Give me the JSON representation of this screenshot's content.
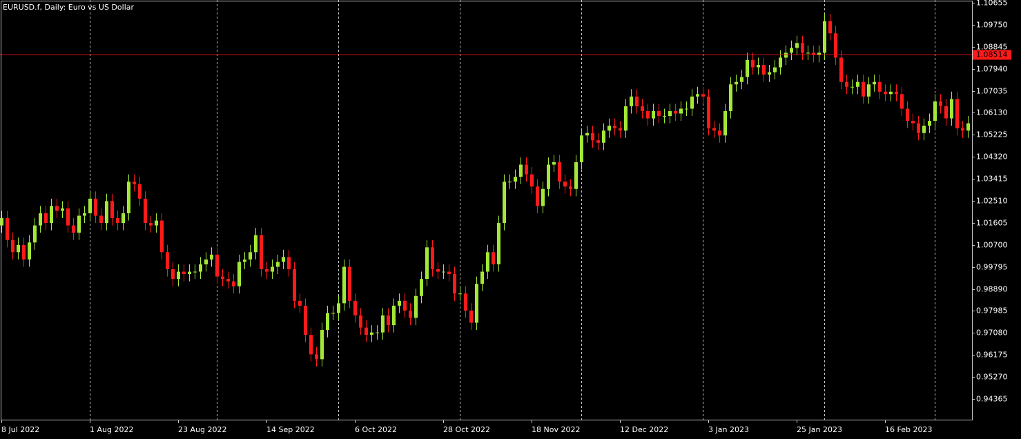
{
  "chart_data": {
    "type": "candlestick",
    "title": "EURUSD.f, Daily:  Euro vs US Dollar",
    "up_color": "#a4e837",
    "down_color": "#ff1a1a",
    "grid": true,
    "bid": 1.08514,
    "ylim": [
      0.93514,
      1.10769
    ],
    "yticks": [
      1.10655,
      {
        "value": 1.0975,
        "label": "1.09750"
      },
      1.08845,
      {
        "value": 1.0794,
        "label": "1.07940"
      },
      1.07035,
      {
        "value": 1.0613,
        "label": "1.06130"
      },
      1.05225,
      {
        "value": 1.0432,
        "label": "1.04320"
      },
      1.03415,
      {
        "value": 1.0251,
        "label": "1.02510"
      },
      1.01605,
      {
        "value": 1.007,
        "label": "1.00700"
      },
      0.99795,
      {
        "value": 0.9889,
        "label": "0.98890"
      },
      0.97985,
      {
        "value": 0.9708,
        "label": "0.97080"
      },
      0.96175,
      {
        "value": 0.9527,
        "label": "0.95270"
      },
      0.94365
    ],
    "categories": [
      "8 Jul 2022",
      null,
      null,
      null,
      null,
      null,
      null,
      null,
      null,
      null,
      null,
      null,
      null,
      null,
      null,
      null,
      "1 Aug 2022",
      null,
      null,
      null,
      null,
      null,
      null,
      null,
      null,
      null,
      null,
      null,
      null,
      null,
      null,
      null,
      "23 Aug 2022",
      null,
      null,
      null,
      null,
      null,
      null,
      null,
      null,
      null,
      null,
      null,
      null,
      null,
      null,
      null,
      "14 Sep 2022",
      null,
      null,
      null,
      null,
      null,
      null,
      null,
      null,
      null,
      null,
      null,
      null,
      null,
      null,
      null,
      "6 Oct 2022",
      null,
      null,
      null,
      null,
      null,
      null,
      null,
      null,
      null,
      null,
      null,
      null,
      null,
      null,
      null,
      "28 Oct 2022",
      null,
      null,
      null,
      null,
      null,
      null,
      null,
      null,
      null,
      null,
      null,
      null,
      null,
      null,
      null,
      "18 Nov 2022",
      null,
      null,
      null,
      null,
      null,
      null,
      null,
      null,
      null,
      null,
      null,
      null,
      null,
      null,
      null,
      "12 Dec 2022",
      null,
      null,
      null,
      null,
      null,
      null,
      null,
      null,
      null,
      null,
      null,
      null,
      null,
      null,
      null,
      "3 Jan 2023",
      null,
      null,
      null,
      null,
      null,
      null,
      null,
      null,
      null,
      null,
      null,
      null,
      null,
      null,
      null,
      "25 Jan 2023",
      null,
      null,
      null,
      null,
      null,
      null,
      null,
      null,
      null,
      null,
      null,
      null,
      null,
      null,
      null,
      "16 Feb 2023",
      null,
      null,
      null,
      null,
      null,
      null,
      null,
      null,
      null,
      null,
      null,
      null,
      null,
      null,
      null
    ],
    "open": [
      1.015,
      1.018,
      1.009,
      1.004,
      1.007,
      1.001,
      1.008,
      1.015,
      1.02,
      1.016,
      1.023,
      1.021,
      1.022,
      1.015,
      1.012,
      1.019,
      1.02,
      1.026,
      1.019,
      1.016,
      1.025,
      1.018,
      1.016,
      1.02,
      1.033,
      1.032,
      1.026,
      1.016,
      1.015,
      1.017,
      1.004,
      0.997,
      0.993,
      0.996,
      0.995,
      0.996,
      0.996,
      0.999,
      1.001,
      1.003,
      0.994,
      0.993,
      0.992,
      0.99,
      1.0,
      1.001,
      1.004,
      1.011,
      0.997,
      0.996,
      0.998,
      1.0,
      1.002,
      0.997,
      0.984,
      0.982,
      0.97,
      0.962,
      0.96,
      0.972,
      0.979,
      0.979,
      0.983,
      0.998,
      0.984,
      0.978,
      0.973,
      0.97,
      0.971,
      0.971,
      0.978,
      0.974,
      0.982,
      0.984,
      0.98,
      0.977,
      0.986,
      0.993,
      1.006,
      0.997,
      0.996,
      0.996,
      0.995,
      0.987,
      0.987,
      0.98,
      0.975,
      0.991,
      0.996,
      1.004,
      0.999,
      1.016,
      1.033,
      1.033,
      1.035,
      1.04,
      1.036,
      1.031,
      1.023,
      1.03,
      1.04,
      1.041,
      1.033,
      1.031,
      1.03,
      1.041,
      1.052,
      1.053,
      1.05,
      1.049,
      1.054,
      1.056,
      1.055,
      1.054,
      1.064,
      1.068,
      1.064,
      1.062,
      1.059,
      1.062,
      1.06,
      1.06,
      1.062,
      1.061,
      1.063,
      1.063,
      1.068,
      1.069,
      1.068,
      1.055,
      1.054,
      1.052,
      1.062,
      1.073,
      1.074,
      1.076,
      1.083,
      1.08,
      1.081,
      1.077,
      1.078,
      1.08,
      1.084,
      1.086,
      1.088,
      1.09,
      1.086,
      1.086,
      1.085,
      1.086,
      1.099,
      1.094,
      1.084,
      1.074,
      1.072,
      1.072,
      1.074,
      1.068,
      1.073,
      1.074,
      1.07,
      1.069,
      1.07,
      1.069,
      1.063,
      1.058,
      1.057,
      1.053,
      1.056,
      1.058,
      1.066,
      1.064,
      1.059,
      1.067,
      1.055,
      1.054
    ],
    "high": [
      1.021,
      1.021,
      1.012,
      1.01,
      1.01,
      1.011,
      1.018,
      1.023,
      1.023,
      1.026,
      1.026,
      1.025,
      1.025,
      1.018,
      1.022,
      1.023,
      1.029,
      1.029,
      1.022,
      1.028,
      1.028,
      1.021,
      1.023,
      1.036,
      1.036,
      1.035,
      1.029,
      1.019,
      1.02,
      1.02,
      1.007,
      1.0,
      0.999,
      0.999,
      0.999,
      0.999,
      1.002,
      1.004,
      1.006,
      1.006,
      0.997,
      0.996,
      0.995,
      1.003,
      1.004,
      1.007,
      1.014,
      1.014,
      1.0,
      1.001,
      1.003,
      1.005,
      1.005,
      1.0,
      0.987,
      0.985,
      0.973,
      0.965,
      0.975,
      0.982,
      0.982,
      0.986,
      1.001,
      1.001,
      0.987,
      0.981,
      0.976,
      0.974,
      0.974,
      0.981,
      0.981,
      0.985,
      0.987,
      0.987,
      0.983,
      0.989,
      0.996,
      1.009,
      1.009,
      1.0,
      0.999,
      0.999,
      0.998,
      0.99,
      0.99,
      0.983,
      0.994,
      0.999,
      1.007,
      1.007,
      1.019,
      1.036,
      1.036,
      1.038,
      1.043,
      1.043,
      1.039,
      1.034,
      1.033,
      1.043,
      1.044,
      1.044,
      1.036,
      1.034,
      1.044,
      1.055,
      1.056,
      1.056,
      1.053,
      1.057,
      1.059,
      1.059,
      1.058,
      1.067,
      1.071,
      1.071,
      1.067,
      1.065,
      1.065,
      1.065,
      1.063,
      1.065,
      1.065,
      1.066,
      1.066,
      1.071,
      1.072,
      1.072,
      1.071,
      1.058,
      1.057,
      1.065,
      1.076,
      1.077,
      1.079,
      1.086,
      1.086,
      1.084,
      1.084,
      1.081,
      1.083,
      1.087,
      1.089,
      1.091,
      1.093,
      1.093,
      1.089,
      1.089,
      1.089,
      1.102,
      1.102,
      1.097,
      1.087,
      1.077,
      1.075,
      1.077,
      1.077,
      1.076,
      1.077,
      1.077,
      1.073,
      1.073,
      1.073,
      1.072,
      1.066,
      1.061,
      1.06,
      1.059,
      1.061,
      1.069,
      1.069,
      1.067,
      1.07,
      1.07,
      1.058,
      1.06
    ],
    "low": [
      1.012,
      1.006,
      1.001,
      1.001,
      0.998,
      0.998,
      1.005,
      1.012,
      1.013,
      1.013,
      1.018,
      1.018,
      1.012,
      1.009,
      1.009,
      1.016,
      1.017,
      1.016,
      1.013,
      1.013,
      1.015,
      1.013,
      1.013,
      1.017,
      1.029,
      1.023,
      1.013,
      1.012,
      1.012,
      1.001,
      0.994,
      0.99,
      0.99,
      0.992,
      0.992,
      0.993,
      0.993,
      0.996,
      0.998,
      0.991,
      0.99,
      0.989,
      0.987,
      0.987,
      0.997,
      0.998,
      1.001,
      0.994,
      0.993,
      0.993,
      0.995,
      0.997,
      0.994,
      0.981,
      0.979,
      0.967,
      0.959,
      0.957,
      0.957,
      0.969,
      0.976,
      0.976,
      0.98,
      0.981,
      0.975,
      0.97,
      0.967,
      0.967,
      0.968,
      0.968,
      0.971,
      0.971,
      0.979,
      0.977,
      0.974,
      0.974,
      0.983,
      0.99,
      0.994,
      0.993,
      0.993,
      0.992,
      0.984,
      0.984,
      0.977,
      0.972,
      0.972,
      0.988,
      0.993,
      0.996,
      0.996,
      1.013,
      1.03,
      1.03,
      1.032,
      1.033,
      1.028,
      1.02,
      1.02,
      1.027,
      1.037,
      1.03,
      1.028,
      1.027,
      1.027,
      1.038,
      1.049,
      1.047,
      1.046,
      1.046,
      1.051,
      1.052,
      1.051,
      1.051,
      1.061,
      1.061,
      1.059,
      1.056,
      1.056,
      1.057,
      1.057,
      1.057,
      1.058,
      1.058,
      1.06,
      1.06,
      1.065,
      1.065,
      1.052,
      1.051,
      1.049,
      1.049,
      1.059,
      1.07,
      1.071,
      1.073,
      1.077,
      1.077,
      1.074,
      1.074,
      1.075,
      1.077,
      1.081,
      1.083,
      1.085,
      1.083,
      1.083,
      1.082,
      1.082,
      1.083,
      1.091,
      1.081,
      1.071,
      1.069,
      1.069,
      1.069,
      1.065,
      1.065,
      1.07,
      1.067,
      1.066,
      1.066,
      1.066,
      1.06,
      1.055,
      1.054,
      1.05,
      1.05,
      1.053,
      1.055,
      1.061,
      1.056,
      1.056,
      1.052,
      1.051,
      1.051
    ],
    "close": [
      1.018,
      1.009,
      1.004,
      1.007,
      1.001,
      1.008,
      1.015,
      1.02,
      1.016,
      1.023,
      1.021,
      1.022,
      1.015,
      1.012,
      1.019,
      1.02,
      1.026,
      1.019,
      1.016,
      1.025,
      1.018,
      1.016,
      1.02,
      1.033,
      1.032,
      1.026,
      1.016,
      1.015,
      1.017,
      1.004,
      0.997,
      0.993,
      0.996,
      0.995,
      0.996,
      0.996,
      0.999,
      1.001,
      1.003,
      0.994,
      0.993,
      0.992,
      0.99,
      1.0,
      1.001,
      1.004,
      1.011,
      0.997,
      0.996,
      0.998,
      1.0,
      1.002,
      0.997,
      0.984,
      0.982,
      0.97,
      0.962,
      0.96,
      0.972,
      0.979,
      0.979,
      0.983,
      0.998,
      0.984,
      0.978,
      0.973,
      0.97,
      0.971,
      0.971,
      0.978,
      0.974,
      0.982,
      0.984,
      0.98,
      0.977,
      0.986,
      0.993,
      1.006,
      0.997,
      0.996,
      0.996,
      0.995,
      0.987,
      0.987,
      0.98,
      0.975,
      0.991,
      0.996,
      1.004,
      0.999,
      1.016,
      1.033,
      1.033,
      1.035,
      1.04,
      1.036,
      1.031,
      1.023,
      1.03,
      1.04,
      1.041,
      1.033,
      1.031,
      1.03,
      1.041,
      1.052,
      1.053,
      1.05,
      1.049,
      1.054,
      1.056,
      1.055,
      1.054,
      1.064,
      1.068,
      1.064,
      1.062,
      1.059,
      1.062,
      1.06,
      1.06,
      1.062,
      1.061,
      1.063,
      1.063,
      1.068,
      1.069,
      1.068,
      1.055,
      1.054,
      1.052,
      1.062,
      1.073,
      1.074,
      1.076,
      1.083,
      1.08,
      1.081,
      1.077,
      1.078,
      1.08,
      1.084,
      1.086,
      1.088,
      1.09,
      1.086,
      1.086,
      1.085,
      1.086,
      1.099,
      1.094,
      1.084,
      1.074,
      1.072,
      1.072,
      1.074,
      1.068,
      1.073,
      1.074,
      1.07,
      1.069,
      1.07,
      1.069,
      1.063,
      1.058,
      1.057,
      1.053,
      1.056,
      1.058,
      1.066,
      1.064,
      1.059,
      1.067,
      1.055,
      1.054,
      1.057
    ]
  }
}
